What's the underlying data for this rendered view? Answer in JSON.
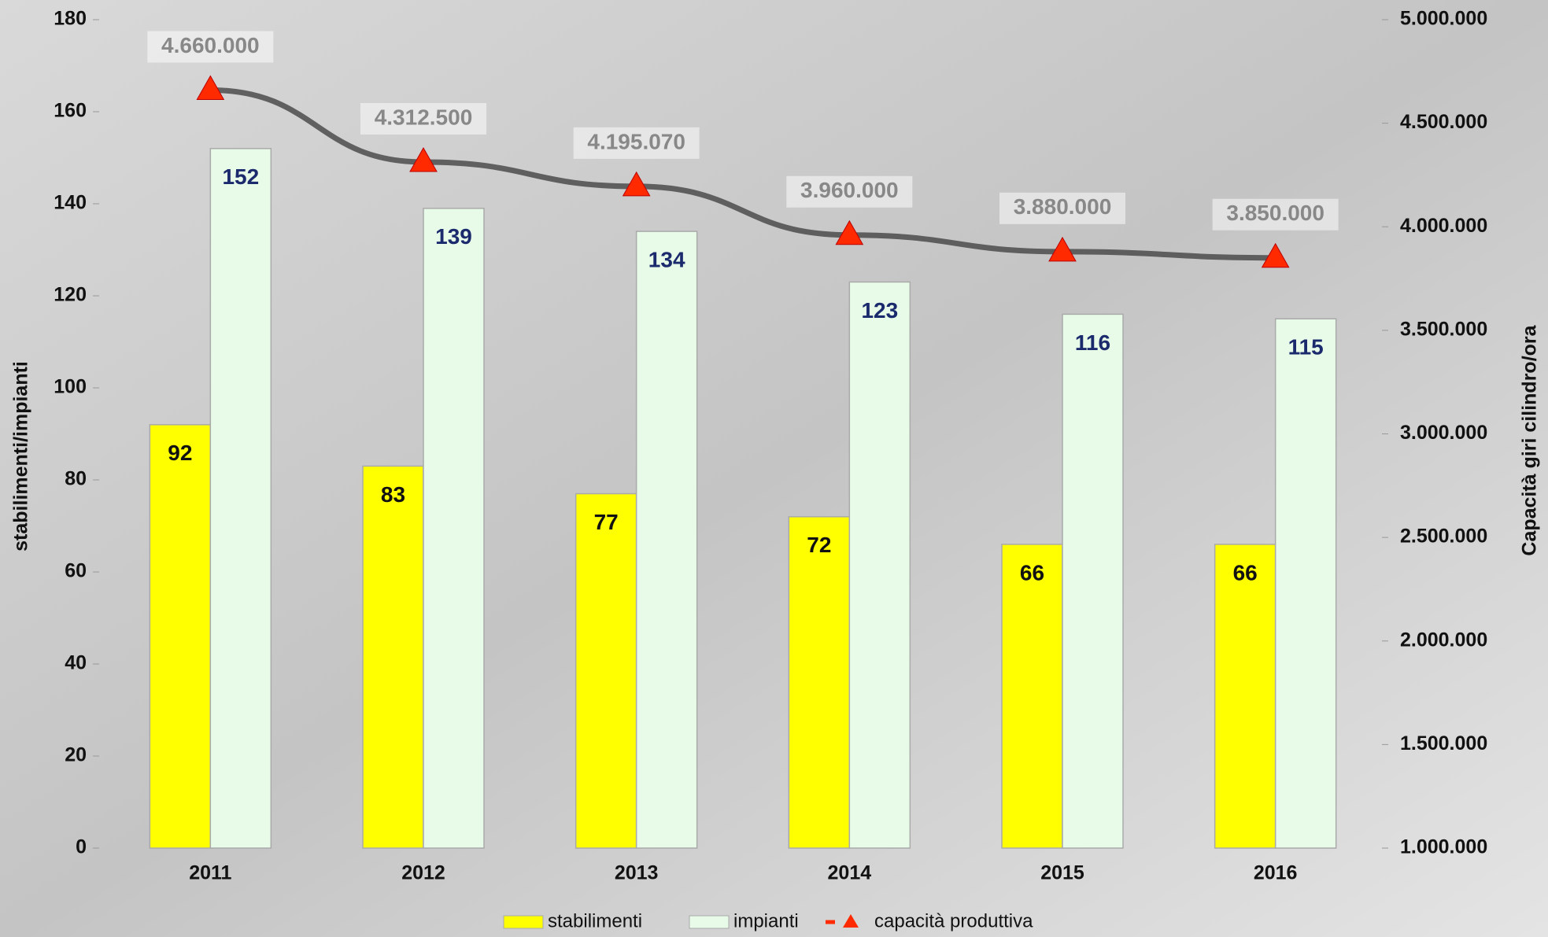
{
  "chart_data": {
    "type": "bar",
    "categories": [
      "2011",
      "2012",
      "2013",
      "2014",
      "2015",
      "2016"
    ],
    "series": [
      {
        "name": "stabilimenti",
        "color": "#ffff00",
        "values": [
          92,
          83,
          77,
          72,
          66,
          66
        ]
      },
      {
        "name": "impianti",
        "color": "#e8fbe8",
        "values": [
          152,
          139,
          134,
          123,
          116,
          115
        ]
      },
      {
        "name": "capacità produttiva",
        "color": "#ff2a00",
        "axis": "y2",
        "values": [
          4660000,
          4312500,
          4195070,
          3960000,
          3880000,
          3850000
        ],
        "value_labels": [
          "4.660.000",
          "4.312.500",
          "4.195.070",
          "3.960.000",
          "3.880.000",
          "3.850.000"
        ]
      }
    ],
    "ylabel": "stabilimenti/impianti",
    "y2label": "Capacità giri cilindro/ora",
    "ylim": [
      0,
      180
    ],
    "yticks": [
      0,
      20,
      40,
      60,
      80,
      100,
      120,
      140,
      160,
      180
    ],
    "y2lim": [
      1000000,
      5000000
    ],
    "y2ticks": [
      {
        "value": 1000000,
        "label": "1.000.000"
      },
      {
        "value": 1500000,
        "label": "1.500.000"
      },
      {
        "value": 2000000,
        "label": "2.000.000"
      },
      {
        "value": 2500000,
        "label": "2.500.000"
      },
      {
        "value": 3000000,
        "label": "3.000.000"
      },
      {
        "value": 3500000,
        "label": "3.500.000"
      },
      {
        "value": 4000000,
        "label": "4.000.000"
      },
      {
        "value": 4500000,
        "label": "4.500.000"
      },
      {
        "value": 5000000,
        "label": "5.000.000"
      }
    ],
    "legend": "bottom"
  }
}
